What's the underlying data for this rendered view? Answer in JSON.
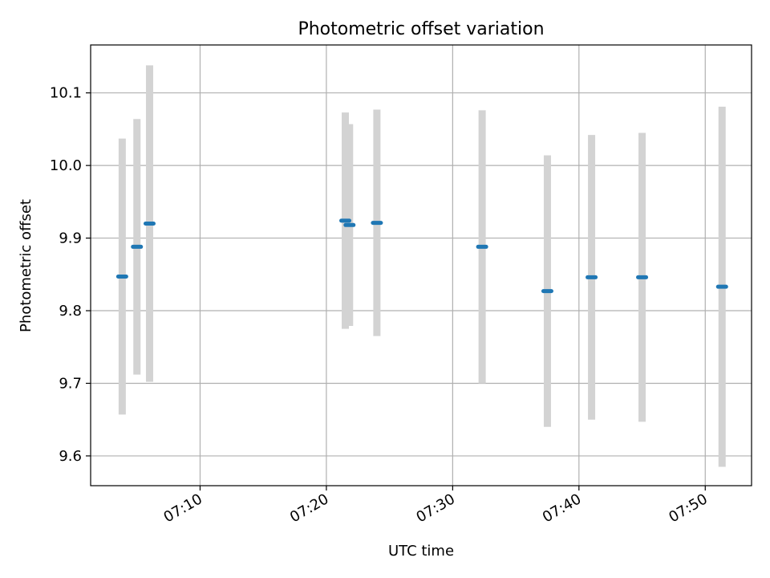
{
  "chart_data": {
    "type": "scatter",
    "title": "Photometric offset variation",
    "xlabel": "UTC time",
    "ylabel": "Photometric offset",
    "x_axis": "time",
    "x_ticks": [
      "07:10",
      "07:20",
      "07:30",
      "07:40",
      "07:50"
    ],
    "xlim": [
      "07:01:20",
      "07:53:40"
    ],
    "ylim": [
      9.559,
      10.166
    ],
    "y_ticks": [
      9.6,
      9.7,
      9.8,
      9.9,
      10.0,
      10.1
    ],
    "y_tick_labels": [
      "9.6",
      "9.7",
      "9.8",
      "9.9",
      "10.0",
      "10.1"
    ],
    "grid": true,
    "colors": {
      "point": "#1f77b4",
      "errorbar": "#d3d3d3",
      "grid": "#b0b0b0"
    },
    "series": [
      {
        "points": [
          {
            "x": "07:03:50",
            "y": 9.847,
            "err": 0.19
          },
          {
            "x": "07:05:00",
            "y": 9.888,
            "err": 0.176
          },
          {
            "x": "07:06:00",
            "y": 9.92,
            "err": 0.218
          },
          {
            "x": "07:21:30",
            "y": 9.924,
            "err": 0.149
          },
          {
            "x": "07:21:50",
            "y": 9.918,
            "err": 0.139
          },
          {
            "x": "07:24:00",
            "y": 9.921,
            "err": 0.156
          },
          {
            "x": "07:32:20",
            "y": 9.888,
            "err": 0.188
          },
          {
            "x": "07:37:30",
            "y": 9.827,
            "err": 0.187
          },
          {
            "x": "07:41:00",
            "y": 9.846,
            "err": 0.196
          },
          {
            "x": "07:45:00",
            "y": 9.846,
            "err": 0.199
          },
          {
            "x": "07:51:20",
            "y": 9.833,
            "err": 0.248
          }
        ]
      }
    ]
  }
}
